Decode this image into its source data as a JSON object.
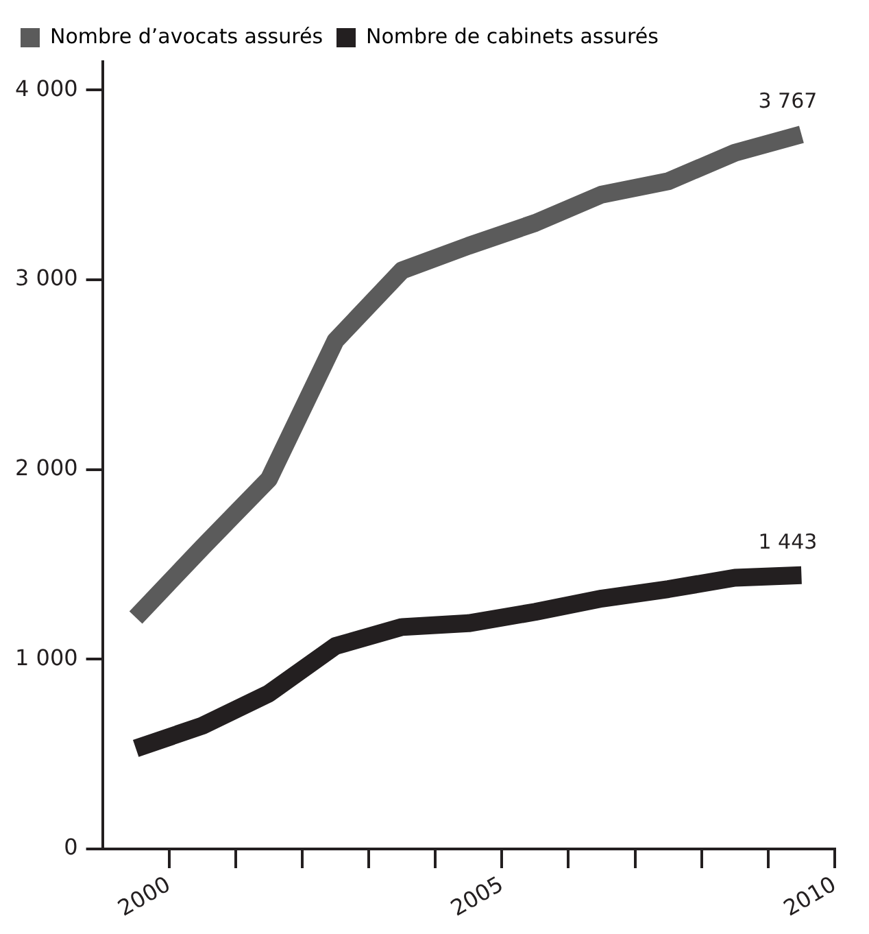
{
  "chart_data": {
    "type": "line",
    "x": [
      1999.5,
      2000.5,
      2001.5,
      2002.5,
      2003.5,
      2004.5,
      2005.5,
      2006.5,
      2007.5,
      2008.5,
      2009.5
    ],
    "series": [
      {
        "name": "Nombre d’avocats assurés",
        "color": "#5b5b5b",
        "values": [
          1220,
          1590,
          1950,
          2680,
          3050,
          3180,
          3300,
          3450,
          3520,
          3670,
          3767
        ],
        "value_labels": [
          null,
          null,
          null,
          null,
          null,
          null,
          null,
          null,
          null,
          null,
          "3 767"
        ]
      },
      {
        "name": "Nombre de cabinets assurés",
        "color": "#231f20",
        "values": [
          530,
          650,
          820,
          1070,
          1170,
          1190,
          1250,
          1320,
          1370,
          1430,
          1443
        ],
        "value_labels": [
          null,
          null,
          null,
          null,
          null,
          null,
          null,
          null,
          null,
          null,
          "1 443"
        ]
      }
    ],
    "xlim": [
      1999,
      2010
    ],
    "xticks": [
      2000,
      {
        "value": 2001,
        "label": null
      },
      {
        "value": 2002,
        "label": null
      },
      {
        "value": 2003,
        "label": null
      },
      {
        "value": 2004,
        "label": null
      },
      2005,
      {
        "value": 2006,
        "label": null
      },
      {
        "value": 2007,
        "label": null
      },
      {
        "value": 2008,
        "label": null
      },
      {
        "value": 2009,
        "label": null
      },
      2010
    ],
    "ylim": [
      0,
      4150
    ],
    "yticks": [
      {
        "value": 0,
        "label": "0"
      },
      {
        "value": 1000,
        "label": "1 000"
      },
      {
        "value": 2000,
        "label": "2 000"
      },
      {
        "value": 3000,
        "label": "3 000"
      },
      {
        "value": 4000,
        "label": "4 000"
      }
    ],
    "grid": false,
    "legend": "top left",
    "marker": "none",
    "line_style": "solid"
  }
}
